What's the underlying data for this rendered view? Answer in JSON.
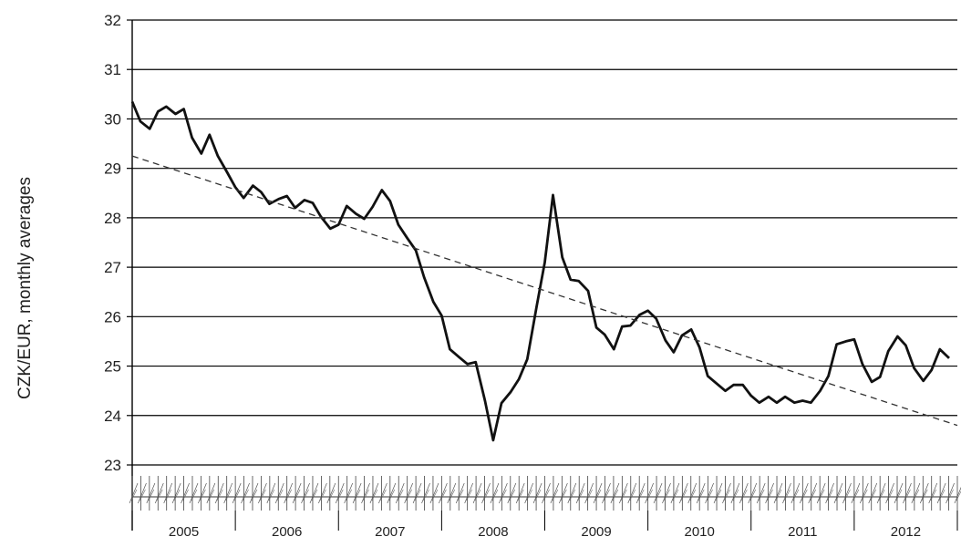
{
  "chart_data": {
    "type": "line",
    "title": "",
    "xlabel": "",
    "ylabel": "CZK/EUR, monthly averages",
    "ylim": [
      23,
      32
    ],
    "yticks": [
      "23",
      "24",
      "25",
      "26",
      "27",
      "28",
      "29",
      "30",
      "31",
      "32"
    ],
    "xlim": [
      2005.0,
      2013.0
    ],
    "year_labels": [
      "2005",
      "2006",
      "2007",
      "2008",
      "2009",
      "2010",
      "2011",
      "2012"
    ],
    "grid": true,
    "legend": "none",
    "line_color": "#111111",
    "series": [
      {
        "style": "solid",
        "x": [
          2005.0,
          2005.08,
          2005.17,
          2005.25,
          2005.33,
          2005.42,
          2005.5,
          2005.58,
          2005.67,
          2005.75,
          2005.83,
          2005.92,
          2006.0,
          2006.08,
          2006.17,
          2006.25,
          2006.33,
          2006.42,
          2006.5,
          2006.58,
          2006.67,
          2006.75,
          2006.83,
          2006.92,
          2007.0,
          2007.08,
          2007.17,
          2007.25,
          2007.33,
          2007.42,
          2007.5,
          2007.58,
          2007.67,
          2007.75,
          2007.83,
          2007.92,
          2008.0,
          2008.08,
          2008.17,
          2008.25,
          2008.33,
          2008.42,
          2008.5,
          2008.58,
          2008.67,
          2008.75,
          2008.83,
          2008.92,
          2009.0,
          2009.08,
          2009.17,
          2009.25,
          2009.33,
          2009.42,
          2009.5,
          2009.58,
          2009.67,
          2009.75,
          2009.83,
          2009.92,
          2010.0,
          2010.08,
          2010.17,
          2010.25,
          2010.33,
          2010.42,
          2010.5,
          2010.58,
          2010.67,
          2010.75,
          2010.83,
          2010.92,
          2011.0,
          2011.08,
          2011.17,
          2011.25,
          2011.33,
          2011.42,
          2011.5,
          2011.58,
          2011.67,
          2011.75,
          2011.83,
          2011.92,
          2012.0,
          2012.08,
          2012.17,
          2012.25,
          2012.33,
          2012.42,
          2012.5,
          2012.58,
          2012.67,
          2012.75,
          2012.83,
          2012.92
        ],
        "values": [
          30.35,
          29.95,
          29.8,
          30.15,
          30.25,
          30.1,
          30.2,
          29.62,
          29.3,
          29.68,
          29.25,
          28.92,
          28.62,
          28.4,
          28.65,
          28.52,
          28.28,
          28.38,
          28.44,
          28.2,
          28.36,
          28.3,
          28.02,
          27.78,
          27.86,
          28.24,
          28.08,
          27.98,
          28.22,
          28.56,
          28.34,
          27.86,
          27.58,
          27.34,
          26.8,
          26.3,
          26.02,
          25.34,
          25.18,
          25.04,
          25.08,
          24.3,
          23.5,
          24.25,
          24.48,
          24.74,
          25.14,
          26.2,
          27.1,
          28.46,
          27.2,
          26.75,
          26.72,
          26.52,
          25.78,
          25.64,
          25.34,
          25.8,
          25.82,
          26.04,
          26.12,
          25.96,
          25.52,
          25.28,
          25.62,
          25.74,
          25.38,
          24.8,
          24.64,
          24.5,
          24.62,
          24.62,
          24.4,
          24.26,
          24.38,
          24.26,
          24.38,
          24.26,
          24.3,
          24.26,
          24.5,
          24.8,
          25.44,
          25.5,
          25.54,
          25.04,
          24.68,
          24.78,
          25.3,
          25.6,
          25.42,
          24.96,
          24.7,
          24.92,
          25.34,
          25.16
        ]
      },
      {
        "style": "dashed",
        "x": [
          2005.0,
          2013.0
        ],
        "values": [
          29.25,
          23.8
        ]
      }
    ]
  }
}
